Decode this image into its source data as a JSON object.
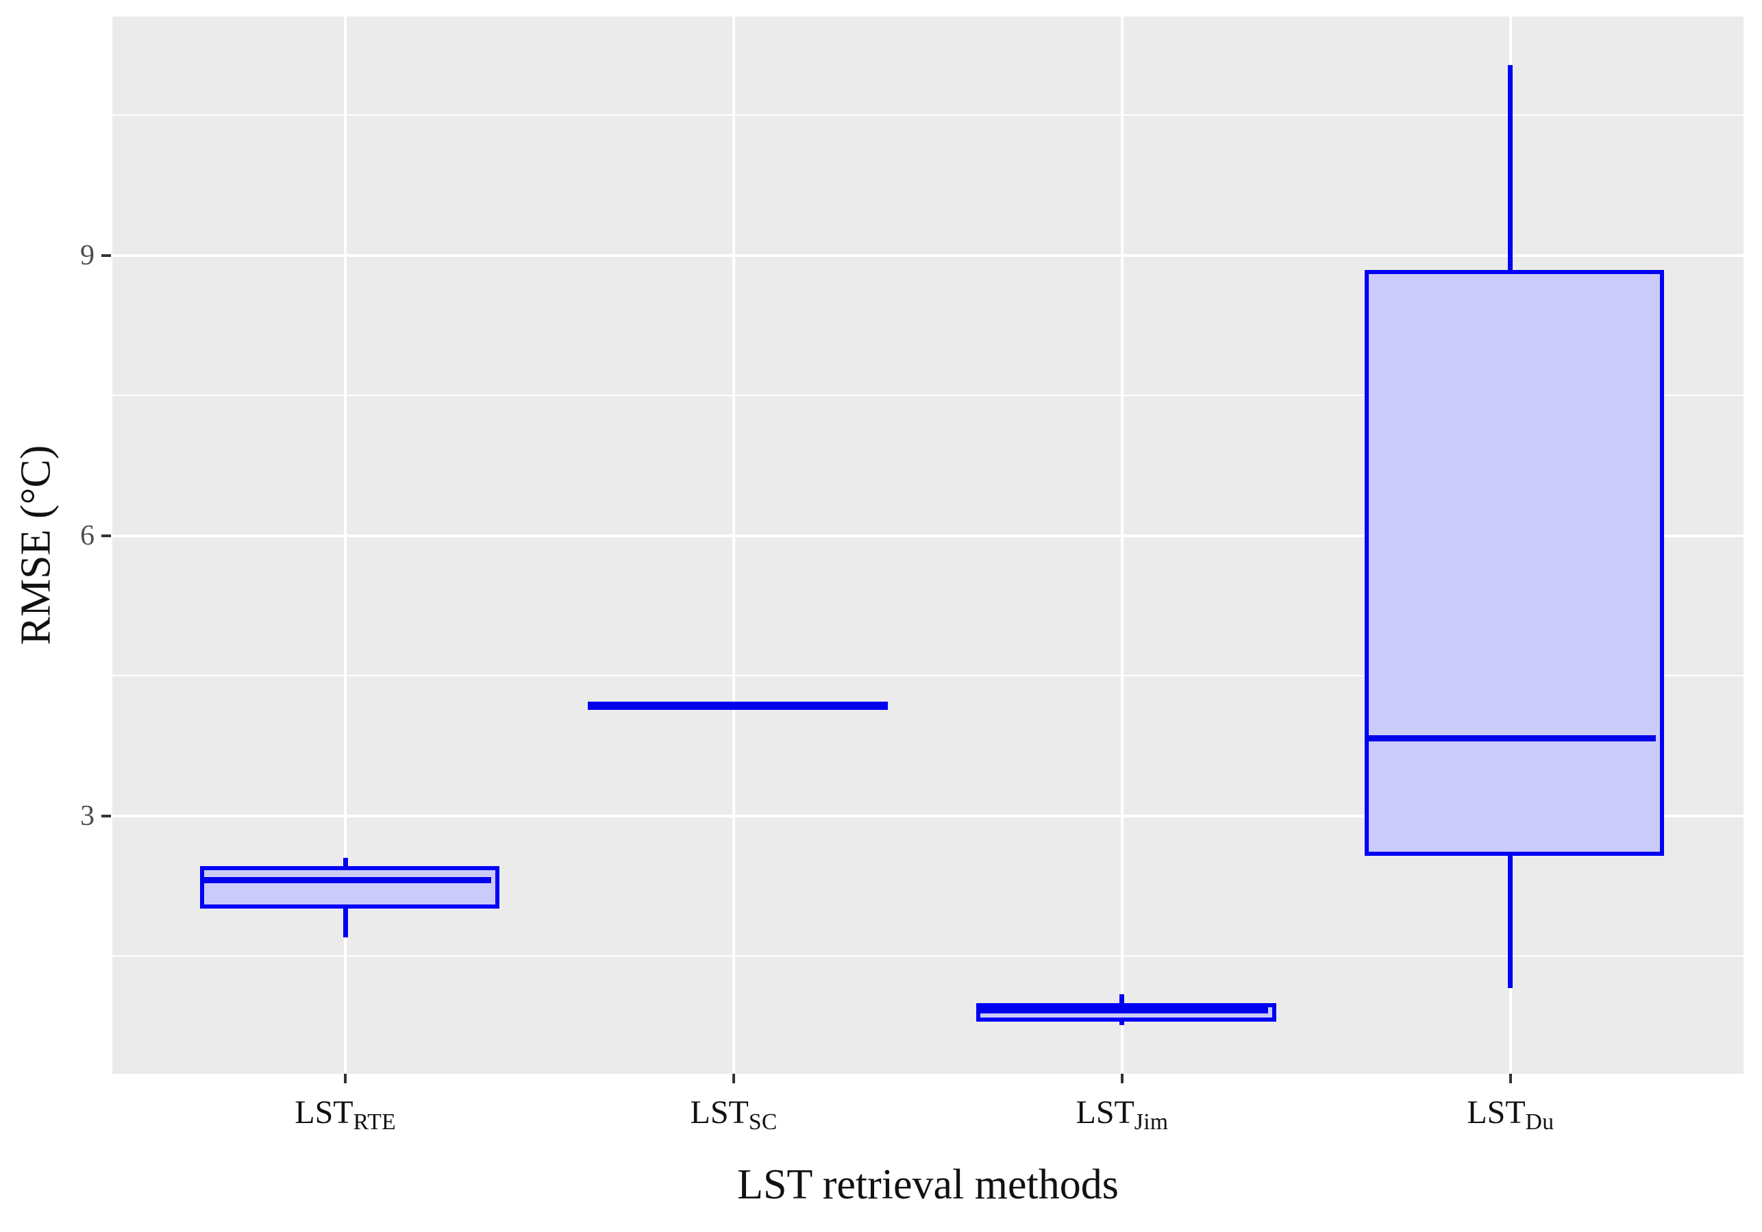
{
  "style": {
    "panel_bg": "#EBEBEB",
    "grid_color": "#FFFFFF",
    "box_stroke": "#0000F5",
    "median_color": "#0000EB",
    "box_fill": "#CBCBFB",
    "tick_mark_color": "#333333",
    "tick_label_color": "#4D4D4D",
    "title_color": "#111111"
  },
  "chart_data": {
    "type": "boxplot",
    "title": "",
    "xlabel": "LST retrieval methods",
    "ylabel": "RMSE (°C)",
    "grid": true,
    "legend": false,
    "ylim": [
      0.24,
      11.56
    ],
    "y_major_ticks": [
      {
        "value": 9,
        "label": "9"
      },
      {
        "value": 6,
        "label": "6"
      },
      {
        "value": 3,
        "label": "3"
      }
    ],
    "y_minor_ticks": [
      10.5,
      7.5,
      4.5,
      1.5
    ],
    "x_slots_total": 4.2,
    "x_first_center_offset": 0.6,
    "box_width_units": 0.75,
    "categories": [
      {
        "base": "LST",
        "sub": "RTE"
      },
      {
        "base": "LST",
        "sub": "SC"
      },
      {
        "base": "LST",
        "sub": "Jim"
      },
      {
        "base": "LST",
        "sub": "Du"
      }
    ],
    "series": [
      {
        "name": "LST_RTE",
        "min": 1.7,
        "q1": 2.05,
        "median": 2.31,
        "q3": 2.42,
        "max": 2.55
      },
      {
        "name": "LST_SC",
        "min": 4.18,
        "q1": 4.18,
        "median": 4.18,
        "q3": 4.18,
        "max": 4.18
      },
      {
        "name": "LST_Jim",
        "min": 0.76,
        "q1": 0.84,
        "median": 0.92,
        "q3": 0.95,
        "max": 1.09
      },
      {
        "name": "LST_Du",
        "min": 1.16,
        "q1": 2.62,
        "median": 3.83,
        "q3": 8.8,
        "max": 11.04
      }
    ]
  }
}
